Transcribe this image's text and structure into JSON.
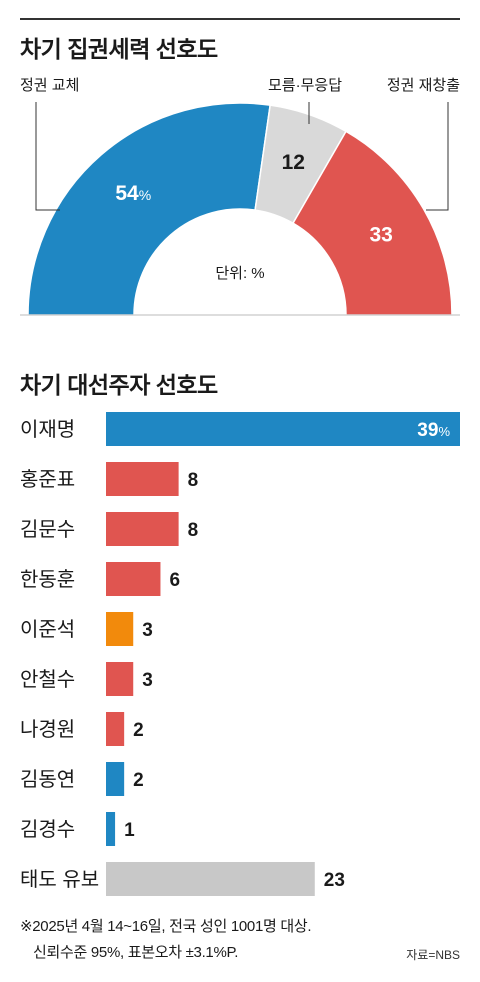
{
  "chart_data": [
    {
      "type": "pie",
      "title": "차기 집권세력 선호도",
      "unit_label": "단위: %",
      "slices": [
        {
          "name": "정권 교체",
          "value": 54,
          "label": "54",
          "color": "#1f87c3"
        },
        {
          "name": "모름·무응답",
          "value": 12,
          "label": "12",
          "color": "#d9d9d9"
        },
        {
          "name": "정권 재창출",
          "value": 33,
          "label": "33",
          "color": "#e05550"
        }
      ]
    },
    {
      "type": "bar",
      "title": "차기 대선주자 선호도",
      "xlim": [
        0,
        39
      ],
      "items": [
        {
          "name": "이재명",
          "value": 39,
          "label": "39",
          "color": "#1f87c3"
        },
        {
          "name": "홍준표",
          "value": 8,
          "label": "8",
          "color": "#e05550"
        },
        {
          "name": "김문수",
          "value": 8,
          "label": "8",
          "color": "#e05550"
        },
        {
          "name": "한동훈",
          "value": 6,
          "label": "6",
          "color": "#e05550"
        },
        {
          "name": "이준석",
          "value": 3,
          "label": "3",
          "color": "#f28a0c"
        },
        {
          "name": "안철수",
          "value": 3,
          "label": "3",
          "color": "#e05550"
        },
        {
          "name": "나경원",
          "value": 2,
          "label": "2",
          "color": "#e05550"
        },
        {
          "name": "김동연",
          "value": 2,
          "label": "2",
          "color": "#1f87c3"
        },
        {
          "name": "김경수",
          "value": 1,
          "label": "1",
          "color": "#1f87c3"
        },
        {
          "name": "태도 유보",
          "value": 23,
          "label": "23",
          "color": "#c8c8c8"
        }
      ]
    }
  ],
  "footnote_line1": "※2025년 4월 14~16일, 전국 성인 1001명 대상.",
  "footnote_line2": "신뢰수준 95%, 표본오차 ±3.1%P.",
  "source": "자료=NBS"
}
